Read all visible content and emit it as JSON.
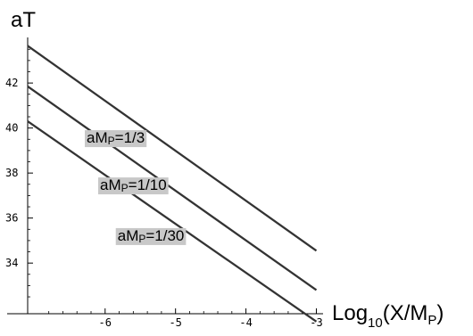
{
  "chart_data": {
    "type": "line",
    "title": "",
    "ylabel": "aT",
    "xlabel": {
      "main": "Log",
      "sub": "10",
      "after": "(X/M",
      "sub2": "P",
      "close": ")"
    },
    "xlim": [
      -7.1,
      -2.93
    ],
    "ylim": [
      31.75,
      44.5
    ],
    "x_ticks": [
      -6,
      -5,
      -4,
      -3
    ],
    "x_tick_labels": [
      "-6",
      "-5",
      "-4",
      "-3"
    ],
    "y_ticks": [
      34,
      36,
      38,
      40,
      42
    ],
    "y_tick_labels": [
      "34",
      "36",
      "38",
      "40",
      "42"
    ],
    "grid": false,
    "legend": "none",
    "line_color": "#333333",
    "annotation_bg": "#c8c8c8",
    "series": [
      {
        "x": [
          -7.1,
          -3.0
        ],
        "y": [
          43.65,
          34.55
        ],
        "label": {
          "pre": "aM",
          "sub": "P",
          "post": "=1/3",
          "x": -5.85,
          "y": 39.35
        }
      },
      {
        "x": [
          -7.1,
          -3.0
        ],
        "y": [
          41.85,
          32.8
        ],
        "label": {
          "pre": "aM",
          "sub": "P",
          "post": "=1/10",
          "x": -5.6,
          "y": 37.25
        }
      },
      {
        "x": [
          -7.1,
          -3.0
        ],
        "y": [
          40.3,
          31.4
        ],
        "label": {
          "pre": "aM",
          "sub": "P",
          "post": "=1/30",
          "x": -5.35,
          "y": 35.0
        }
      }
    ]
  }
}
